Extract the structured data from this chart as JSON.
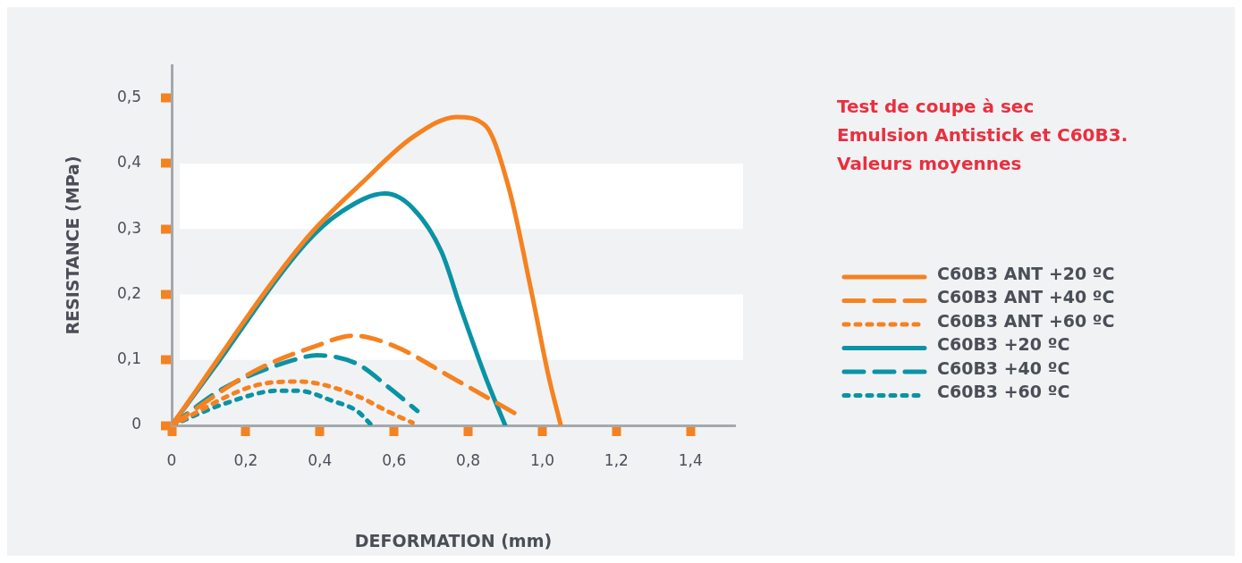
{
  "chart_data": {
    "type": "line",
    "title": "Test de coupe à sec\nEmulsion Antistick et C60B3.\nValeurs moyennes",
    "xlabel": "DEFORMATION (mm)",
    "ylabel": "RESISTANCE (MPa)",
    "xlim": [
      0,
      1.52
    ],
    "ylim": [
      0,
      0.55
    ],
    "xticks": [
      0,
      {
        "value": 0.2,
        "label": "0,2"
      },
      {
        "value": 0.4,
        "label": "0,4"
      },
      {
        "value": 0.6,
        "label": "0,6"
      },
      {
        "value": 0.8,
        "label": "0,8"
      },
      {
        "value": 1.0,
        "label": "1,0"
      },
      {
        "value": 1.2,
        "label": "1,2"
      },
      {
        "value": 1.4,
        "label": "1,4"
      }
    ],
    "yticks": [
      0,
      {
        "value": 0.1,
        "label": "0,1"
      },
      {
        "value": 0.2,
        "label": "0,2"
      },
      {
        "value": 0.3,
        "label": "0,3"
      },
      {
        "value": 0.4,
        "label": "0,4"
      },
      {
        "value": 0.5,
        "label": "0,5"
      }
    ],
    "grid": false,
    "legend": "right",
    "marker": "none",
    "bands": [
      {
        "axis": "y",
        "from": 0.1,
        "to": 0.2,
        "color": "#ffffff"
      },
      {
        "axis": "y",
        "from": 0.3,
        "to": 0.4,
        "color": "#ffffff"
      }
    ],
    "series": [
      {
        "name": "C60B3 ANT +20 ºC",
        "color": "#f58220",
        "line_style": "solid",
        "x": [
          0,
          0.36,
          0.52,
          0.65,
          0.77,
          0.846,
          0.91,
          0.973,
          1.017,
          1.05
        ],
        "values": [
          0,
          0.283,
          0.374,
          0.44,
          0.471,
          0.458,
          0.362,
          0.198,
          0.075,
          0
        ]
      },
      {
        "name": "C60B3 ANT +40 ºC",
        "color": "#f58220",
        "line_style": "dashed",
        "x": [
          0,
          0.22,
          0.393,
          0.49,
          0.597,
          0.759,
          0.937
        ],
        "values": [
          0,
          0.082,
          0.122,
          0.137,
          0.122,
          0.072,
          0.015
        ]
      },
      {
        "name": "C60B3 ANT +60 ºC",
        "color": "#f58220",
        "line_style": "dotted",
        "x": [
          0,
          0.22,
          0.34,
          0.393,
          0.5,
          0.588,
          0.65
        ],
        "values": [
          0,
          0.06,
          0.067,
          0.064,
          0.045,
          0.02,
          0.004
        ]
      },
      {
        "name": "C60B3 +20 ºC",
        "color": "#0a93a4",
        "line_style": "solid",
        "x": [
          0,
          0.113,
          0.36,
          0.46,
          0.576,
          0.65,
          0.728,
          0.78,
          0.846,
          0.9
        ],
        "values": [
          0,
          0.087,
          0.277,
          0.327,
          0.354,
          0.332,
          0.265,
          0.179,
          0.075,
          0
        ]
      },
      {
        "name": "C60B3 +40 ºC",
        "color": "#0a93a4",
        "line_style": "dashed",
        "x": [
          0,
          0.135,
          0.33,
          0.393,
          0.5,
          0.588,
          0.663
        ],
        "values": [
          0,
          0.055,
          0.1,
          0.107,
          0.094,
          0.057,
          0.022
        ]
      },
      {
        "name": "C60B3 +60 ºC",
        "color": "#0a93a4",
        "line_style": "dotted",
        "x": [
          0,
          0.147,
          0.287,
          0.34,
          0.436,
          0.5,
          0.54
        ],
        "values": [
          0,
          0.034,
          0.053,
          0.053,
          0.037,
          0.022,
          0
        ]
      }
    ]
  }
}
